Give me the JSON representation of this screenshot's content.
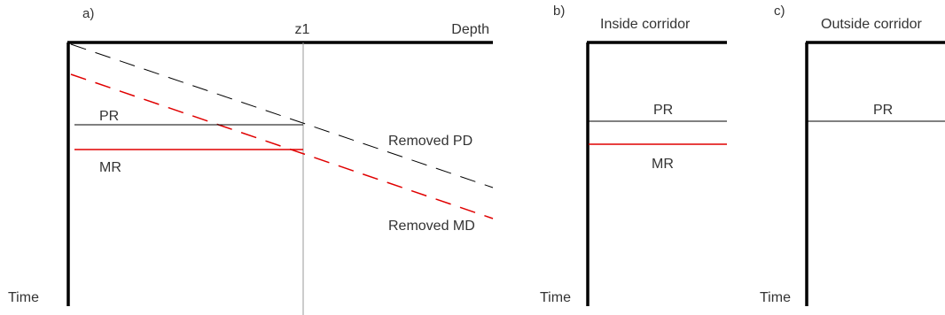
{
  "panels": {
    "a": {
      "tag": "a)",
      "depth_label": "Depth",
      "z_label": "z1",
      "time_label": "Time",
      "pr_label": "PR",
      "mr_label": "MR",
      "pd_label": "Removed PD",
      "md_label": "Removed MD"
    },
    "b": {
      "tag": "b)",
      "title": "Inside corridor",
      "time_label": "Time",
      "pr_label": "PR",
      "mr_label": "MR"
    },
    "c": {
      "tag": "c)",
      "title": "Outside corridor",
      "time_label": "Time",
      "pr_label": "PR"
    }
  },
  "colors": {
    "axis": "#000000",
    "pr_line": "#000000",
    "mr_line": "#e00000",
    "pd_line": "#000000",
    "md_line": "#e00000",
    "z_line": "#999999",
    "text": "#333333"
  }
}
